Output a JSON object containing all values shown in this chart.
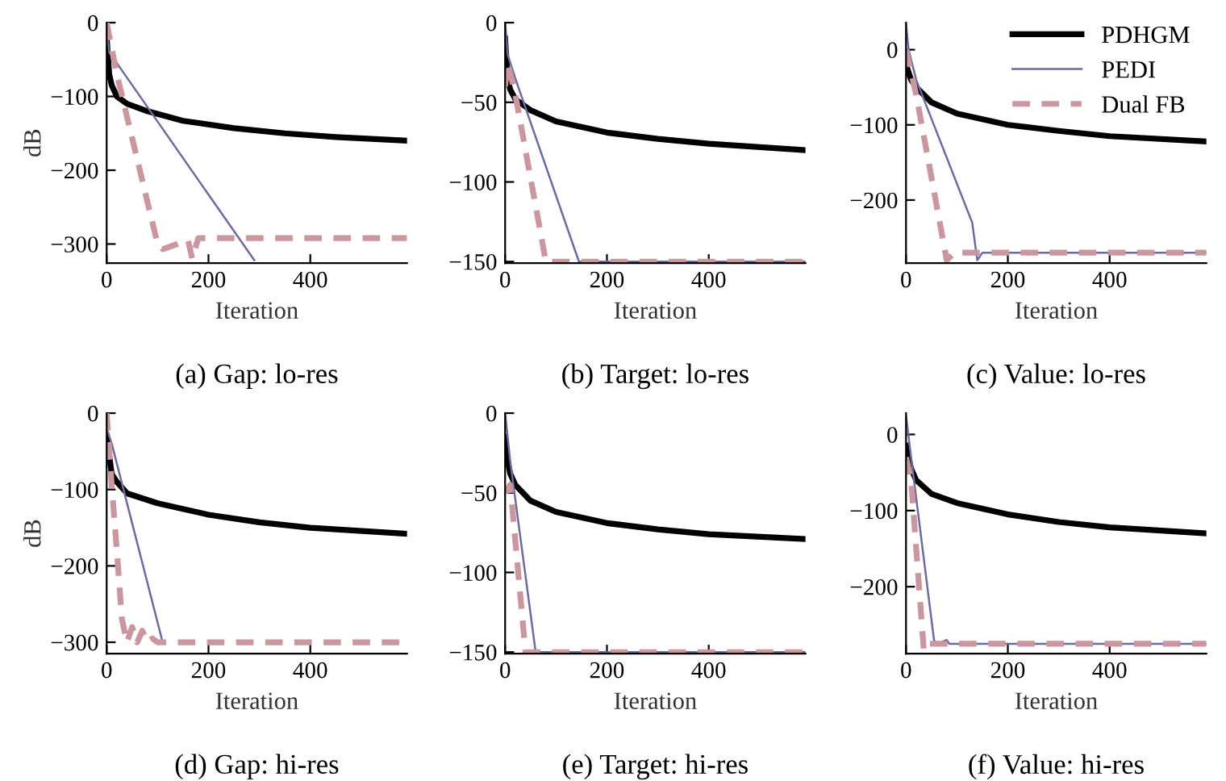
{
  "chart_data": [
    {
      "type": "line",
      "title": "(a) Gap: lo-res",
      "xlabel": "Iteration",
      "ylabel": "dB",
      "xlim": [
        0,
        590
      ],
      "ylim": [
        -326,
        0
      ],
      "xticks": [
        0,
        200,
        400
      ],
      "yticks": [
        -300,
        -200,
        -100,
        0
      ],
      "grid": false,
      "legend": false,
      "series": [
        {
          "color": "#000000",
          "line_style": "solid",
          "x": [
            0,
            5,
            10,
            20,
            40,
            80,
            150,
            250,
            350,
            450,
            590
          ],
          "values": [
            -20,
            -70,
            -85,
            -100,
            -110,
            -120,
            -133,
            -143,
            -150,
            -155,
            -160
          ]
        },
        {
          "color": "#6b6ba0",
          "line_style": "solid",
          "x": [
            0,
            5,
            290
          ],
          "values": [
            -10,
            -40,
            -322
          ]
        },
        {
          "color": "#c9979d",
          "line_style": "dashed",
          "x": [
            0,
            20,
            100,
            110,
            160,
            168,
            180,
            590
          ],
          "values": [
            0,
            -70,
            -300,
            -307,
            -295,
            -320,
            -292,
            -292
          ]
        }
      ]
    },
    {
      "type": "line",
      "title": "(b) Target: lo-res",
      "xlabel": "Iteration",
      "xlim": [
        0,
        590
      ],
      "ylim": [
        -151,
        0
      ],
      "xticks": [
        0,
        200,
        400
      ],
      "yticks": [
        -150,
        -100,
        -50,
        0
      ],
      "grid": false,
      "legend": false,
      "series": [
        {
          "color": "#000000",
          "line_style": "solid",
          "x": [
            0,
            5,
            10,
            20,
            50,
            100,
            200,
            300,
            400,
            590
          ],
          "values": [
            -10,
            -35,
            -42,
            -48,
            -55,
            -62,
            -69,
            -73,
            -76,
            -80
          ]
        },
        {
          "color": "#6b6ba0",
          "line_style": "solid",
          "x": [
            0,
            5,
            20,
            145,
            590
          ],
          "values": [
            0,
            -20,
            -35,
            -150,
            -150
          ]
        },
        {
          "color": "#c9979d",
          "line_style": "dashed",
          "x": [
            0,
            5,
            20,
            80,
            590
          ],
          "values": [
            -40,
            -25,
            -45,
            -150,
            -150
          ]
        }
      ]
    },
    {
      "type": "line",
      "title": "(c) Value: lo-res",
      "xlabel": "Iteration",
      "xlim": [
        0,
        590
      ],
      "ylim": [
        -284,
        36
      ],
      "xticks": [
        0,
        200,
        400
      ],
      "yticks": [
        -200,
        -100,
        0
      ],
      "grid": false,
      "legend": "top right",
      "series": [
        {
          "name": "PDHGM",
          "color": "#000000",
          "line_style": "solid",
          "x": [
            0,
            10,
            20,
            50,
            100,
            200,
            300,
            400,
            590
          ],
          "values": [
            -20,
            -40,
            -50,
            -70,
            -85,
            -100,
            -108,
            -115,
            -122
          ]
        },
        {
          "name": "PEDI",
          "color": "#6b6ba0",
          "line_style": "solid",
          "x": [
            0,
            5,
            20,
            130,
            140,
            150,
            590
          ],
          "values": [
            35,
            0,
            -40,
            -230,
            -280,
            -270,
            -270
          ]
        },
        {
          "name": "Dual FB",
          "color": "#c9979d",
          "line_style": "dashed",
          "x": [
            0,
            20,
            80,
            95,
            590
          ],
          "values": [
            0,
            -60,
            -280,
            -270,
            -270
          ]
        }
      ]
    },
    {
      "type": "line",
      "title": "(d) Gap: hi-res",
      "xlabel": "Iteration",
      "ylabel": "dB",
      "xlim": [
        0,
        590
      ],
      "ylim": [
        -315,
        0
      ],
      "xticks": [
        0,
        200,
        400
      ],
      "yticks": [
        -300,
        -200,
        -100,
        0
      ],
      "grid": false,
      "legend": false,
      "series": [
        {
          "color": "#000000",
          "line_style": "solid",
          "x": [
            0,
            10,
            20,
            40,
            100,
            200,
            300,
            400,
            590
          ],
          "values": [
            -30,
            -80,
            -90,
            -105,
            -118,
            -133,
            -143,
            -150,
            -158
          ]
        },
        {
          "color": "#6b6ba0",
          "line_style": "solid",
          "x": [
            0,
            10,
            110
          ],
          "values": [
            -20,
            -40,
            -300
          ]
        },
        {
          "color": "#c9979d",
          "line_style": "dashed",
          "x": [
            0,
            10,
            20,
            30,
            40,
            50,
            60,
            70,
            80,
            90,
            100,
            590
          ],
          "values": [
            0,
            -95,
            -180,
            -270,
            -300,
            -280,
            -300,
            -285,
            -300,
            -295,
            -300,
            -300
          ]
        }
      ]
    },
    {
      "type": "line",
      "title": "(e) Target: hi-res",
      "xlabel": "Iteration",
      "xlim": [
        0,
        590
      ],
      "ylim": [
        -151,
        0
      ],
      "xticks": [
        0,
        200,
        400
      ],
      "yticks": [
        -150,
        -100,
        -50,
        0
      ],
      "grid": false,
      "legend": false,
      "series": [
        {
          "color": "#000000",
          "line_style": "solid",
          "x": [
            0,
            5,
            10,
            20,
            50,
            100,
            200,
            300,
            400,
            590
          ],
          "values": [
            -15,
            -30,
            -38,
            -45,
            -55,
            -62,
            -69,
            -73,
            -76,
            -79
          ]
        },
        {
          "color": "#6b6ba0",
          "line_style": "solid",
          "x": [
            0,
            10,
            60,
            590
          ],
          "values": [
            0,
            -30,
            -150,
            -150
          ]
        },
        {
          "color": "#c9979d",
          "line_style": "dashed",
          "x": [
            0,
            10,
            40,
            590
          ],
          "values": [
            -50,
            -45,
            -150,
            -150
          ]
        }
      ]
    },
    {
      "type": "line",
      "title": "(f) Value: hi-res",
      "xlabel": "Iteration",
      "xlim": [
        0,
        590
      ],
      "ylim": [
        -288,
        28
      ],
      "xticks": [
        0,
        200,
        400
      ],
      "yticks": [
        -200,
        -100,
        0
      ],
      "grid": false,
      "legend": false,
      "series": [
        {
          "color": "#000000",
          "line_style": "solid",
          "x": [
            0,
            10,
            20,
            50,
            100,
            200,
            300,
            400,
            590
          ],
          "values": [
            -15,
            -45,
            -60,
            -78,
            -90,
            -105,
            -115,
            -122,
            -130
          ]
        },
        {
          "color": "#6b6ba0",
          "line_style": "solid",
          "x": [
            0,
            10,
            55,
            60,
            80,
            85,
            590
          ],
          "values": [
            25,
            -30,
            -270,
            -275,
            -270,
            -275,
            -275
          ]
        },
        {
          "color": "#c9979d",
          "line_style": "dashed",
          "x": [
            0,
            10,
            35,
            45,
            590
          ],
          "values": [
            -30,
            -60,
            -284,
            -275,
            -275
          ]
        }
      ]
    }
  ]
}
